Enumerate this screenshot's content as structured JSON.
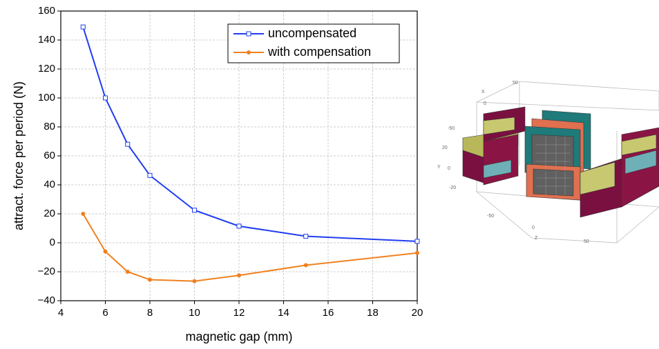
{
  "chart_data": {
    "type": "line",
    "x_label": "magnetic gap (mm)",
    "y_label": "attract. force per period (N)",
    "x": [
      5,
      6,
      7,
      8,
      10,
      12,
      15,
      20
    ],
    "series": [
      {
        "name": "uncompensated",
        "color": "#1f3cf0",
        "marker": "square",
        "values": [
          149,
          100,
          68,
          46.5,
          22.5,
          11.5,
          4.5,
          1
        ]
      },
      {
        "name": "with compensation",
        "color": "#f0801e",
        "marker": "circle",
        "values": [
          20,
          -6,
          -20,
          -25.5,
          -26.5,
          -22.5,
          -15.5,
          -7
        ]
      }
    ],
    "xlim": [
      4,
      20
    ],
    "xticks": [
      4,
      6,
      8,
      10,
      12,
      14,
      16,
      18,
      20
    ],
    "ylim": [
      -40,
      160
    ],
    "yticks": [
      {
        "value": -40,
        "label": "−40"
      },
      {
        "value": -20,
        "label": "−20"
      },
      0,
      20,
      40,
      60,
      80,
      100,
      120,
      140,
      160
    ],
    "grid": true,
    "legend": "upper right"
  },
  "illustration": {
    "labels": [
      "X",
      "50",
      "0",
      "-50",
      "20",
      "Y",
      "0",
      "-20",
      "-50",
      "0",
      "Z",
      "50"
    ]
  }
}
